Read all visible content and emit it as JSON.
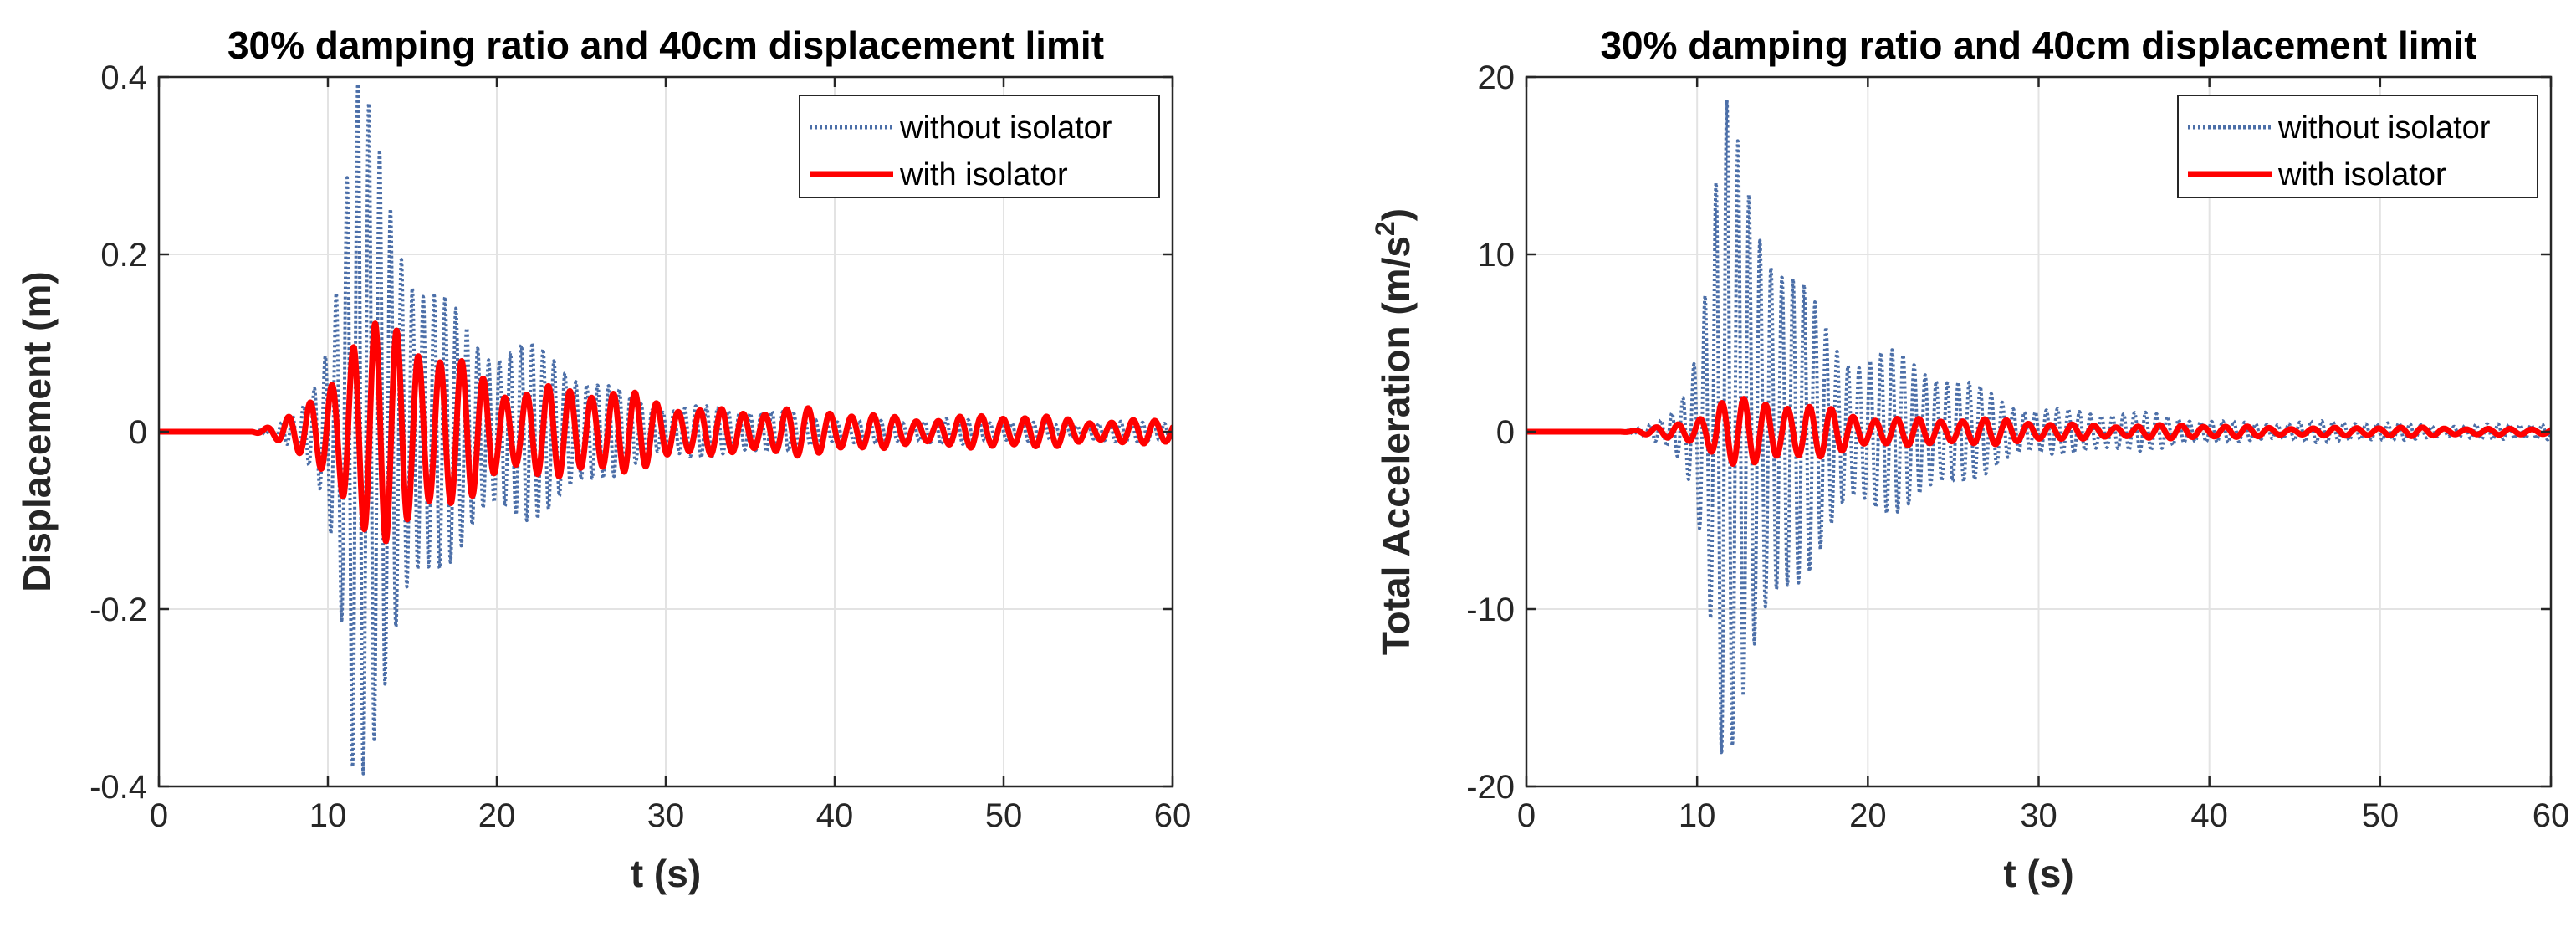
{
  "chart_data": [
    {
      "type": "line",
      "title": "30% damping ratio and 40cm displacement limit",
      "xlabel": "t (s)",
      "ylabel": "Displacement (m)",
      "xlim": [
        0,
        60
      ],
      "ylim": [
        -0.4,
        0.4
      ],
      "xticks": [
        0,
        10,
        20,
        30,
        40,
        50,
        60
      ],
      "yticks": [
        -0.4,
        -0.2,
        0,
        0.2,
        0.4
      ],
      "xtick_labels": [
        "0",
        "10",
        "20",
        "30",
        "40",
        "50",
        "60"
      ],
      "ytick_labels": [
        "-0.4",
        "-0.2",
        "0",
        "0.2",
        "0.4"
      ],
      "grid": true,
      "legend_position": "top-right",
      "series": [
        {
          "name": "without isolator",
          "color": "#4c6fa8",
          "style": "dotted",
          "signal": {
            "start": 5.5,
            "freq": 1.55,
            "peak_time": 11.5,
            "peak": 0.41,
            "rise": 4,
            "decay": 0.14,
            "tail": 0.012
          },
          "envelope_points": [
            [
              10,
              0.16
            ],
            [
              11.5,
              0.41
            ],
            [
              12.2,
              -0.35
            ],
            [
              13.5,
              0.3
            ],
            [
              15,
              0.2
            ],
            [
              17,
              0.13
            ],
            [
              20,
              0.06
            ],
            [
              25,
              0.05
            ],
            [
              30,
              0.03
            ],
            [
              40,
              0.01
            ],
            [
              50,
              0.015
            ],
            [
              60,
              0.005
            ]
          ]
        },
        {
          "name": "with isolator",
          "color": "#ff0000",
          "style": "solid",
          "signal": {
            "start": 5.5,
            "freq": 0.78,
            "peak_time": 11.2,
            "peak": 0.14,
            "rise": 3,
            "decay": 0.09,
            "tail": 0.015
          },
          "envelope_points": [
            [
              10,
              0.05
            ],
            [
              11,
              0.1
            ],
            [
              11.2,
              -0.14
            ],
            [
              12,
              0.1
            ],
            [
              16,
              0.07
            ],
            [
              18,
              -0.08
            ],
            [
              20,
              0.045
            ],
            [
              25,
              0.03
            ],
            [
              30,
              -0.02
            ],
            [
              37,
              0.015
            ],
            [
              50,
              0.015
            ],
            [
              60,
              0.0
            ]
          ]
        }
      ]
    },
    {
      "type": "line",
      "title": "30% damping ratio and 40cm displacement limit",
      "xlabel": "t (s)",
      "ylabel": "Total Acceleration (m/s",
      "ylabel_sup": "2",
      "ylabel_end": ")",
      "xlim": [
        0,
        60
      ],
      "ylim": [
        -20,
        20
      ],
      "xticks": [
        0,
        10,
        20,
        30,
        40,
        50,
        60
      ],
      "yticks": [
        -20,
        -10,
        0,
        10,
        20
      ],
      "xtick_labels": [
        "0",
        "10",
        "20",
        "30",
        "40",
        "50",
        "60"
      ],
      "ytick_labels": [
        "-20",
        "-10",
        "0",
        "10",
        "20"
      ],
      "grid": true,
      "legend_position": "top-right",
      "series": [
        {
          "name": "without isolator",
          "color": "#4c6fa8",
          "style": "dotted",
          "signal": {
            "start": 5.5,
            "freq": 1.55,
            "peak_time": 11.5,
            "peak": 19,
            "rise": 4,
            "decay": 0.14,
            "tail": 0.5
          },
          "envelope_points": [
            [
              10,
              3.5
            ],
            [
              11.5,
              -19.5
            ],
            [
              12,
              15.5
            ],
            [
              13.5,
              11
            ],
            [
              15,
              9
            ],
            [
              17,
              6
            ],
            [
              20,
              1.5
            ],
            [
              25,
              2
            ],
            [
              30,
              1.5
            ],
            [
              40,
              0.5
            ],
            [
              50,
              0.8
            ],
            [
              60,
              0.2
            ]
          ]
        },
        {
          "name": "with isolator",
          "color": "#ff0000",
          "style": "solid",
          "signal": {
            "start": 5.5,
            "freq": 0.78,
            "peak_time": 11.2,
            "peak": 2.2,
            "rise": 3,
            "decay": 0.09,
            "tail": 0.2
          },
          "envelope_points": [
            [
              10,
              1
            ],
            [
              11.2,
              2.2
            ],
            [
              11.5,
              -2
            ],
            [
              13,
              1
            ],
            [
              17,
              1
            ],
            [
              20,
              0.5
            ],
            [
              25,
              0.4
            ],
            [
              30,
              0.3
            ],
            [
              40,
              0.15
            ],
            [
              50,
              0.3
            ],
            [
              60,
              0.0
            ]
          ]
        }
      ]
    }
  ]
}
